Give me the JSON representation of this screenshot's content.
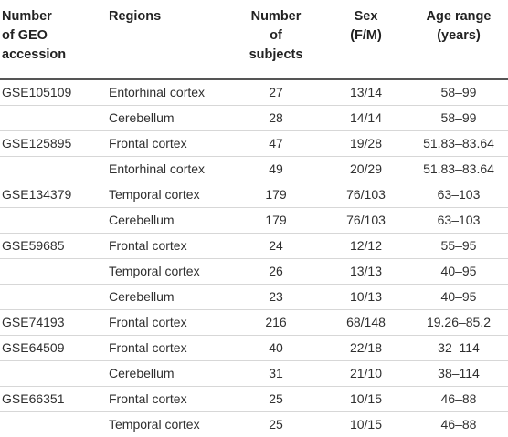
{
  "headers": {
    "accession": [
      "Number",
      "of GEO",
      "accession"
    ],
    "regions": "Regions",
    "subjects": [
      "Number",
      "of",
      "subjects"
    ],
    "sex": [
      "Sex",
      "(F/M)"
    ],
    "age": [
      "Age range",
      "(years)"
    ]
  },
  "rows": [
    {
      "accession": "GSE105109",
      "region": "Entorhinal cortex",
      "subjects": "27",
      "sex": "13/14",
      "age": "58–99"
    },
    {
      "accession": "",
      "region": "Cerebellum",
      "subjects": "28",
      "sex": "14/14",
      "age": "58–99"
    },
    {
      "accession": "GSE125895",
      "region": "Frontal cortex",
      "subjects": "47",
      "sex": "19/28",
      "age": "51.83–83.64"
    },
    {
      "accession": "",
      "region": "Entorhinal cortex",
      "subjects": "49",
      "sex": "20/29",
      "age": "51.83–83.64"
    },
    {
      "accession": "GSE134379",
      "region": "Temporal cortex",
      "subjects": "179",
      "sex": "76/103",
      "age": "63–103"
    },
    {
      "accession": "",
      "region": "Cerebellum",
      "subjects": "179",
      "sex": "76/103",
      "age": "63–103"
    },
    {
      "accession": "GSE59685",
      "region": "Frontal cortex",
      "subjects": "24",
      "sex": "12/12",
      "age": "55–95"
    },
    {
      "accession": "",
      "region": "Temporal cortex",
      "subjects": "26",
      "sex": "13/13",
      "age": "40–95"
    },
    {
      "accession": "",
      "region": "Cerebellum",
      "subjects": "23",
      "sex": "10/13",
      "age": "40–95"
    },
    {
      "accession": "GSE74193",
      "region": "Frontal cortex",
      "subjects": "216",
      "sex": "68/148",
      "age": "19.26–85.2"
    },
    {
      "accession": "GSE64509",
      "region": "Frontal cortex",
      "subjects": "40",
      "sex": "22/18",
      "age": "32–114"
    },
    {
      "accession": "",
      "region": "Cerebellum",
      "subjects": "31",
      "sex": "21/10",
      "age": "38–114"
    },
    {
      "accession": "GSE66351",
      "region": "Frontal cortex",
      "subjects": "25",
      "sex": "10/15",
      "age": "46–88"
    },
    {
      "accession": "",
      "region": "Temporal cortex",
      "subjects": "25",
      "sex": "10/15",
      "age": "46–88"
    }
  ]
}
